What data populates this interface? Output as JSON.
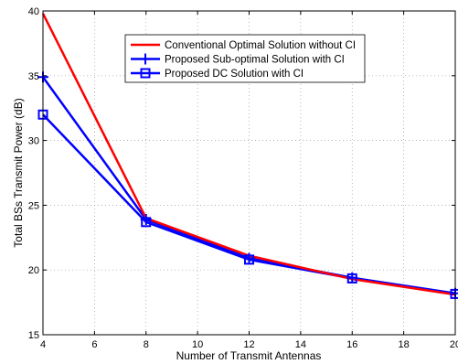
{
  "chart_data": {
    "type": "line",
    "xlabel": "Number of Transmit Antennas",
    "ylabel": "Total BSs Transmit Power (dB)",
    "xlim": [
      4,
      20
    ],
    "ylim": [
      15,
      40
    ],
    "xticks": [
      4,
      6,
      8,
      10,
      12,
      14,
      16,
      18,
      20
    ],
    "yticks": [
      15,
      20,
      25,
      30,
      35,
      40
    ],
    "grid": true,
    "legend_position": "top-right",
    "x": [
      4,
      8,
      12,
      16,
      20
    ],
    "series": [
      {
        "name": "Conventional Optimal Solution without CI",
        "color": "#ff0000",
        "marker": "none",
        "values": [
          39.8,
          24.0,
          21.1,
          19.3,
          18.1
        ]
      },
      {
        "name": "Proposed Sub-optimal Solution with CI",
        "color": "#0000ff",
        "marker": "plus",
        "values": [
          34.9,
          23.9,
          20.9,
          19.4,
          18.2
        ]
      },
      {
        "name": "Proposed DC Solution with CI",
        "color": "#0000ff",
        "marker": "square",
        "values": [
          32.0,
          23.7,
          20.8,
          19.35,
          18.15
        ]
      }
    ]
  }
}
